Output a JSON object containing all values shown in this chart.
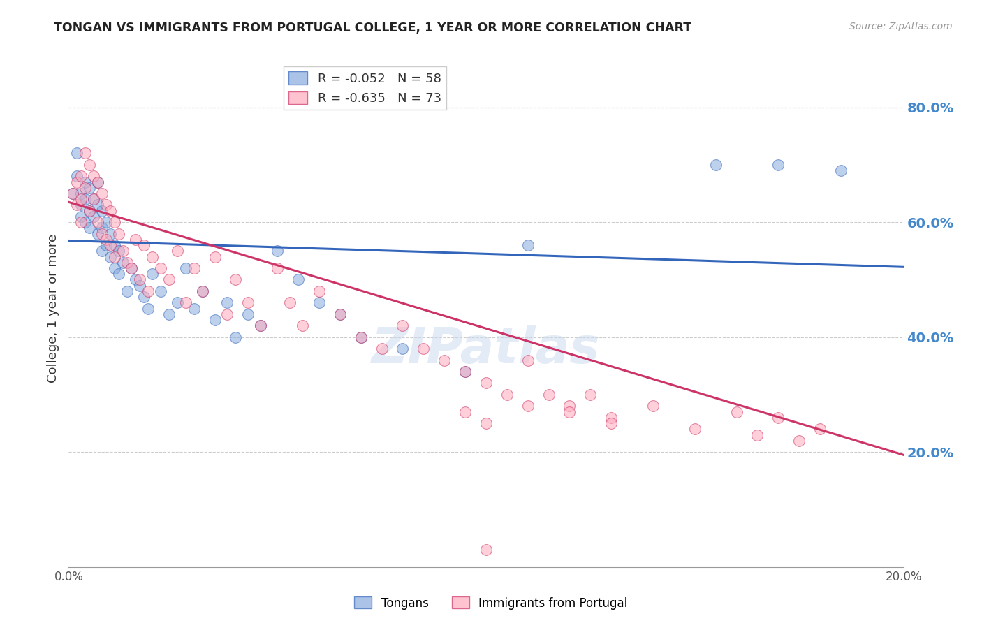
{
  "title": "TONGAN VS IMMIGRANTS FROM PORTUGAL COLLEGE, 1 YEAR OR MORE CORRELATION CHART",
  "source": "Source: ZipAtlas.com",
  "ylabel": "College, 1 year or more",
  "xmin": 0.0,
  "xmax": 0.2,
  "ymin": 0.0,
  "ymax": 0.9,
  "right_yticks": [
    0.2,
    0.4,
    0.6,
    0.8
  ],
  "right_ytick_labels": [
    "20.0%",
    "40.0%",
    "60.0%",
    "80.0%"
  ],
  "grid_color": "#cccccc",
  "background_color": "#ffffff",
  "blue_color": "#88aadd",
  "pink_color": "#ffaabc",
  "blue_fill_color": "#aabbee",
  "pink_fill_color": "#ffbbcc",
  "blue_line_color": "#3366bb",
  "pink_line_color": "#cc3366",
  "legend_r_blue": "R = -0.052",
  "legend_n_blue": "N = 58",
  "legend_r_pink": "R = -0.635",
  "legend_n_pink": "N = 73",
  "watermark": "ZIPatlas",
  "blue_line_x": [
    0.0,
    0.2
  ],
  "blue_line_y": [
    0.568,
    0.522
  ],
  "pink_line_x": [
    0.0,
    0.2
  ],
  "pink_line_y": [
    0.635,
    0.195
  ],
  "tongans_scatter_x": [
    0.001,
    0.002,
    0.002,
    0.003,
    0.003,
    0.003,
    0.004,
    0.004,
    0.004,
    0.005,
    0.005,
    0.005,
    0.006,
    0.006,
    0.007,
    0.007,
    0.007,
    0.008,
    0.008,
    0.008,
    0.009,
    0.009,
    0.01,
    0.01,
    0.011,
    0.011,
    0.012,
    0.012,
    0.013,
    0.014,
    0.015,
    0.016,
    0.017,
    0.018,
    0.019,
    0.02,
    0.022,
    0.024,
    0.026,
    0.028,
    0.03,
    0.032,
    0.035,
    0.038,
    0.04,
    0.043,
    0.046,
    0.05,
    0.055,
    0.06,
    0.065,
    0.07,
    0.08,
    0.095,
    0.11,
    0.155,
    0.17,
    0.185
  ],
  "tongans_scatter_y": [
    0.65,
    0.72,
    0.68,
    0.65,
    0.63,
    0.61,
    0.67,
    0.64,
    0.6,
    0.66,
    0.62,
    0.59,
    0.64,
    0.61,
    0.67,
    0.63,
    0.58,
    0.62,
    0.59,
    0.55,
    0.6,
    0.56,
    0.58,
    0.54,
    0.56,
    0.52,
    0.55,
    0.51,
    0.53,
    0.48,
    0.52,
    0.5,
    0.49,
    0.47,
    0.45,
    0.51,
    0.48,
    0.44,
    0.46,
    0.52,
    0.45,
    0.48,
    0.43,
    0.46,
    0.4,
    0.44,
    0.42,
    0.55,
    0.5,
    0.46,
    0.44,
    0.4,
    0.38,
    0.34,
    0.56,
    0.7,
    0.7,
    0.69
  ],
  "portugal_scatter_x": [
    0.001,
    0.002,
    0.002,
    0.003,
    0.003,
    0.003,
    0.004,
    0.004,
    0.005,
    0.005,
    0.006,
    0.006,
    0.007,
    0.007,
    0.008,
    0.008,
    0.009,
    0.009,
    0.01,
    0.01,
    0.011,
    0.011,
    0.012,
    0.013,
    0.014,
    0.015,
    0.016,
    0.017,
    0.018,
    0.019,
    0.02,
    0.022,
    0.024,
    0.026,
    0.028,
    0.03,
    0.032,
    0.035,
    0.038,
    0.04,
    0.043,
    0.046,
    0.05,
    0.053,
    0.056,
    0.06,
    0.065,
    0.07,
    0.075,
    0.08,
    0.085,
    0.09,
    0.095,
    0.1,
    0.105,
    0.11,
    0.115,
    0.12,
    0.125,
    0.13,
    0.14,
    0.15,
    0.16,
    0.165,
    0.17,
    0.175,
    0.18,
    0.095,
    0.1,
    0.11,
    0.12,
    0.13,
    0.1
  ],
  "portugal_scatter_y": [
    0.65,
    0.67,
    0.63,
    0.68,
    0.64,
    0.6,
    0.72,
    0.66,
    0.7,
    0.62,
    0.68,
    0.64,
    0.67,
    0.6,
    0.65,
    0.58,
    0.63,
    0.57,
    0.62,
    0.56,
    0.6,
    0.54,
    0.58,
    0.55,
    0.53,
    0.52,
    0.57,
    0.5,
    0.56,
    0.48,
    0.54,
    0.52,
    0.5,
    0.55,
    0.46,
    0.52,
    0.48,
    0.54,
    0.44,
    0.5,
    0.46,
    0.42,
    0.52,
    0.46,
    0.42,
    0.48,
    0.44,
    0.4,
    0.38,
    0.42,
    0.38,
    0.36,
    0.34,
    0.32,
    0.3,
    0.36,
    0.3,
    0.28,
    0.3,
    0.26,
    0.28,
    0.24,
    0.27,
    0.23,
    0.26,
    0.22,
    0.24,
    0.27,
    0.25,
    0.28,
    0.27,
    0.25,
    0.03
  ]
}
